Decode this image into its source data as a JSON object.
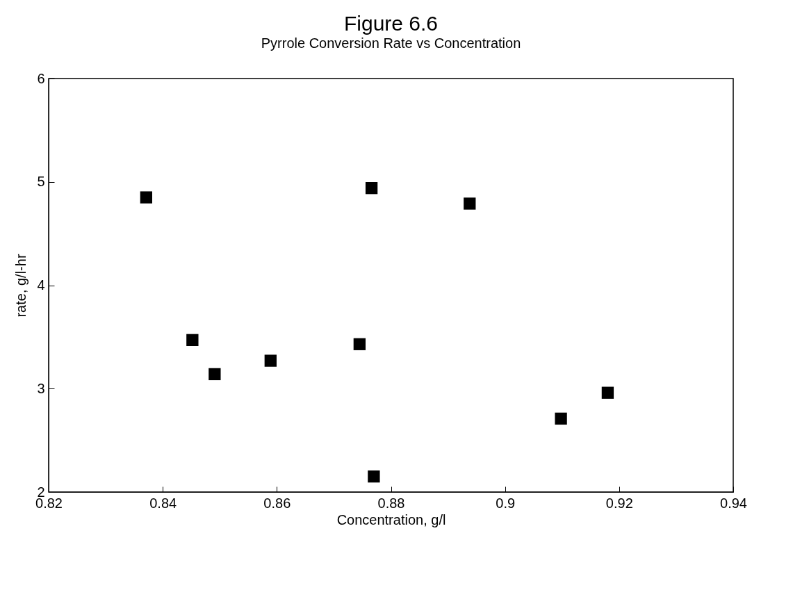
{
  "chart_data": {
    "type": "scatter",
    "title": "Figure 6.6",
    "subtitle": "Pyrrole Conversion Rate vs Concentration",
    "xlabel": "Concentration, g/l",
    "ylabel": "rate, g/l-hr",
    "x": [
      0.8371,
      0.8452,
      0.8491,
      0.8589,
      0.8745,
      0.8766,
      0.877,
      0.8938,
      0.9098,
      0.918
    ],
    "series": [
      {
        "color": "#000000",
        "values": [
          4.85,
          3.47,
          3.14,
          3.27,
          3.43,
          4.94,
          2.15,
          4.79,
          2.71,
          2.96
        ]
      }
    ],
    "xlim": [
      0.82,
      0.94
    ],
    "xticks": [
      0.82,
      0.84,
      0.86,
      0.88,
      0.9,
      0.92,
      0.94
    ],
    "ylim": [
      2,
      6
    ],
    "yticks": [
      2,
      3,
      4,
      5,
      6
    ],
    "grid": false,
    "marker": "square"
  }
}
